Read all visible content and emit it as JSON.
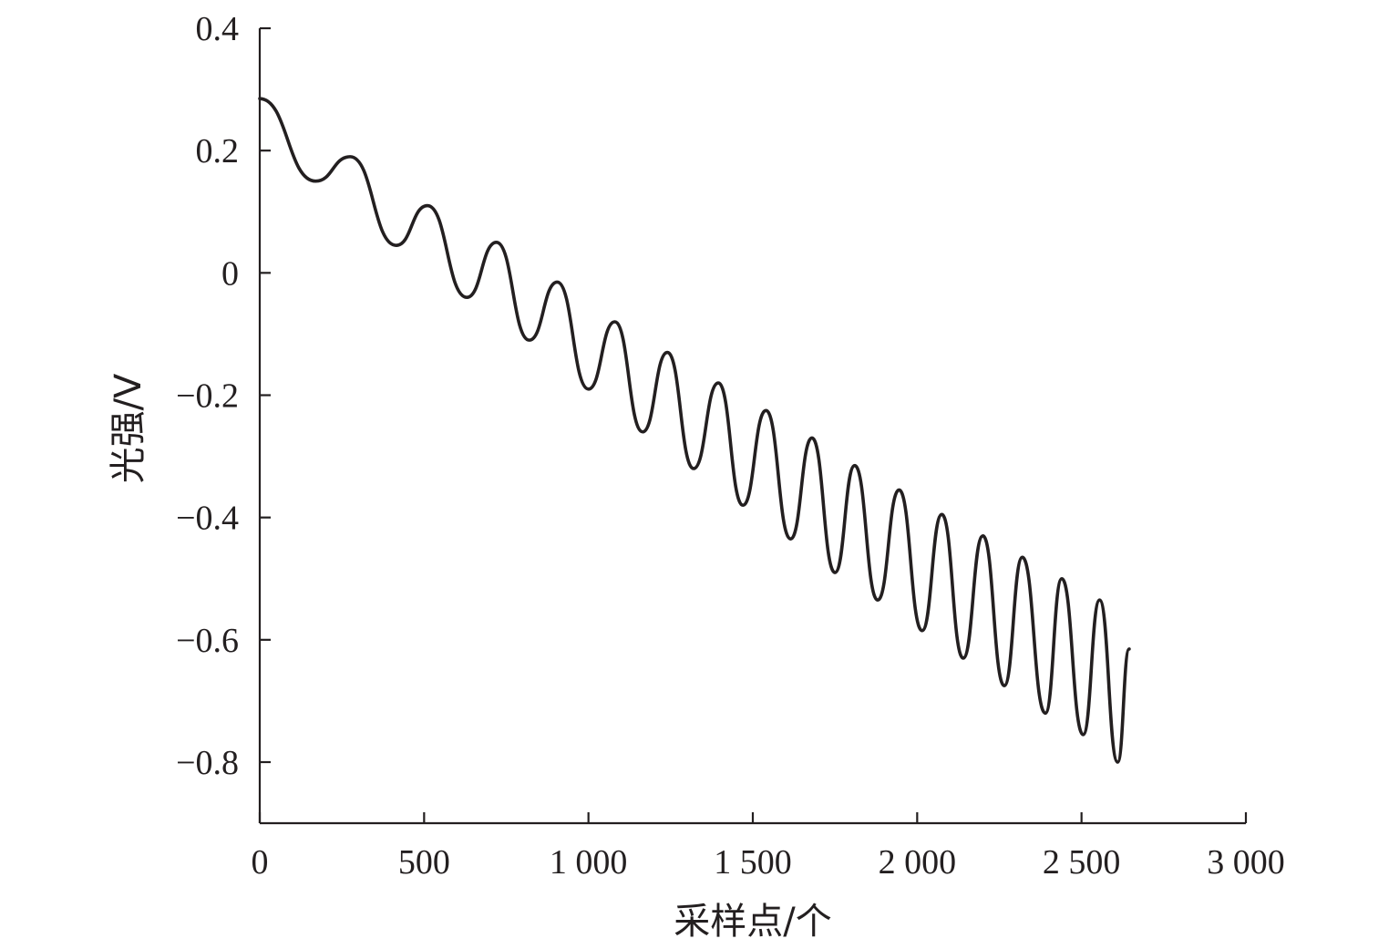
{
  "chart_data": {
    "type": "line",
    "title": "",
    "xlabel": "采样点/个",
    "ylabel": "光强/V",
    "xlim": [
      0,
      3000
    ],
    "ylim": [
      -0.9,
      0.4
    ],
    "grid": false,
    "x_ticks": [
      {
        "value": 0,
        "label": "0"
      },
      {
        "value": 500,
        "label": "500"
      },
      {
        "value": 1000,
        "label": "1 000"
      },
      {
        "value": 1500,
        "label": "1 500"
      },
      {
        "value": 2000,
        "label": "2 000"
      },
      {
        "value": 2500,
        "label": "2 500"
      },
      {
        "value": 3000,
        "label": "3 000"
      }
    ],
    "y_ticks": [
      {
        "value": 0.4,
        "label": "0.4"
      },
      {
        "value": 0.2,
        "label": "0.2"
      },
      {
        "value": 0,
        "label": "0"
      },
      {
        "value": -0.2,
        "label": "−0.2"
      },
      {
        "value": -0.4,
        "label": "−0.4"
      },
      {
        "value": -0.6,
        "label": "−0.6"
      },
      {
        "value": -0.8,
        "label": "−0.8"
      }
    ],
    "series": [
      {
        "color": "#231f20",
        "points": [
          [
            0,
            0.285
          ],
          [
            170,
            0.15
          ],
          [
            275,
            0.19
          ],
          [
            415,
            0.045
          ],
          [
            510,
            0.11
          ],
          [
            630,
            -0.04
          ],
          [
            720,
            0.05
          ],
          [
            820,
            -0.11
          ],
          [
            905,
            -0.015
          ],
          [
            1000,
            -0.19
          ],
          [
            1080,
            -0.08
          ],
          [
            1165,
            -0.26
          ],
          [
            1240,
            -0.13
          ],
          [
            1320,
            -0.32
          ],
          [
            1395,
            -0.18
          ],
          [
            1470,
            -0.38
          ],
          [
            1540,
            -0.225
          ],
          [
            1615,
            -0.435
          ],
          [
            1680,
            -0.27
          ],
          [
            1750,
            -0.49
          ],
          [
            1810,
            -0.315
          ],
          [
            1880,
            -0.535
          ],
          [
            1945,
            -0.355
          ],
          [
            2015,
            -0.585
          ],
          [
            2075,
            -0.395
          ],
          [
            2140,
            -0.63
          ],
          [
            2200,
            -0.43
          ],
          [
            2265,
            -0.675
          ],
          [
            2320,
            -0.465
          ],
          [
            2390,
            -0.72
          ],
          [
            2440,
            -0.5
          ],
          [
            2505,
            -0.755
          ],
          [
            2555,
            -0.535
          ],
          [
            2610,
            -0.8
          ],
          [
            2645,
            -0.615
          ]
        ]
      }
    ]
  }
}
